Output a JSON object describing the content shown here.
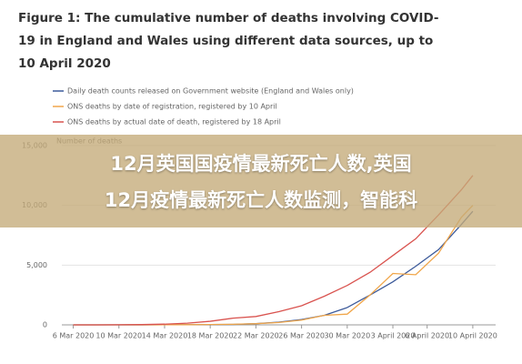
{
  "chart_data": {
    "type": "line",
    "title": "Figure 1: The cumulative number of deaths involving COVID-19 in England and Wales using different data sources, up to 10 April 2020",
    "y_label": "Number of deaths",
    "annotations": [
      "12月英国国疫情最新死亡人数,英国",
      "12月疫情最新死亡人数监测，智能科"
    ],
    "x": [
      0,
      2,
      4,
      6,
      8,
      10,
      12,
      14,
      16,
      18,
      20,
      22,
      24,
      26,
      28,
      30,
      32,
      34,
      35
    ],
    "xlim": [
      -1,
      37
    ],
    "xticks": [
      {
        "value": 0,
        "label": "6 Mar 2020"
      },
      {
        "value": 4,
        "label": "10 Mar 2020"
      },
      {
        "value": 8,
        "label": "14 Mar 2020"
      },
      {
        "value": 12,
        "label": "18 Mar 2020"
      },
      {
        "value": 16,
        "label": "22 Mar 2020"
      },
      {
        "value": 20,
        "label": "26 Mar 2020"
      },
      {
        "value": 24,
        "label": "30 Mar 2020"
      },
      {
        "value": 28,
        "label": "3 April 2020"
      },
      {
        "value": 31,
        "label": "6 April 2020"
      },
      {
        "value": 35,
        "label": "10 April 2020"
      }
    ],
    "ylim": [
      0,
      15000
    ],
    "yticks": [
      0,
      {
        "value": 5000,
        "label": "5,000"
      },
      {
        "value": 10000,
        "label": "10,000"
      },
      {
        "value": 15000,
        "label": "15,000"
      }
    ],
    "grid": true,
    "series": [
      {
        "name": "Daily death counts released on Government website (England and Wales only)",
        "color": "#3c5a9a",
        "values": [
          0,
          0,
          2,
          5,
          10,
          15,
          25,
          40,
          100,
          230,
          450,
          800,
          1450,
          2500,
          3600,
          4900,
          6300,
          8400,
          9500
        ]
      },
      {
        "name": "ONS deaths by date of registration, registered by 10 April",
        "color": "#f0a64a",
        "values": [
          0,
          0,
          2,
          5,
          10,
          15,
          30,
          50,
          100,
          200,
          400,
          800,
          900,
          2500,
          4300,
          4200,
          6000,
          9000,
          10000
        ]
      },
      {
        "name": "ONS deaths by actual date of death, registered by 18 April",
        "color": "#d9534f",
        "values": [
          0,
          2,
          8,
          25,
          60,
          140,
          300,
          560,
          700,
          1100,
          1600,
          2400,
          3300,
          4400,
          5800,
          7200,
          9200,
          11300,
          12500
        ]
      }
    ]
  }
}
